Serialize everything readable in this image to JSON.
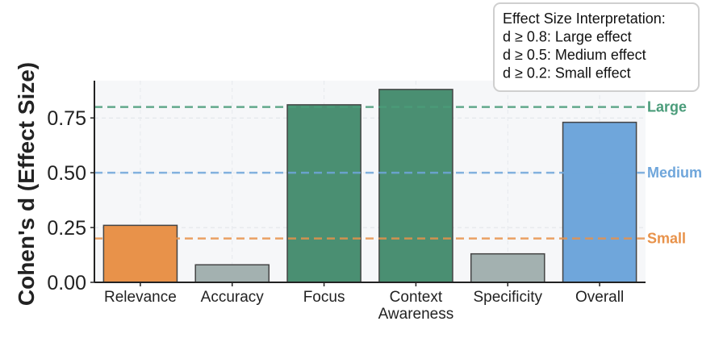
{
  "chart_data": {
    "type": "bar",
    "categories": [
      "Relevance",
      "Accuracy",
      "Focus",
      "Context Awareness",
      "Specificity",
      "Overall"
    ],
    "values": [
      0.26,
      0.08,
      0.81,
      0.88,
      0.13,
      0.73
    ],
    "bar_colors": [
      "#E8924A",
      "#A3B1B0",
      "#4A8F72",
      "#4A8F72",
      "#A3B1B0",
      "#6FA6DB"
    ],
    "ylabel": "Cohen's d (Effect Size)",
    "xlabel": "",
    "ylim": [
      0,
      0.92
    ],
    "yticks": [
      0.0,
      0.25,
      0.5,
      0.75
    ],
    "ytick_labels": [
      "0.00",
      "0.25",
      "0.50",
      "0.75"
    ],
    "reference_lines": [
      {
        "value": 0.8,
        "label": "Large",
        "color": "#4A9C7A"
      },
      {
        "value": 0.5,
        "label": "Medium",
        "color": "#6FA6DB"
      },
      {
        "value": 0.2,
        "label": "Small",
        "color": "#E8924A"
      }
    ],
    "grid": true,
    "legend": {
      "placement": "top-right",
      "lines": [
        "Effect Size Interpretation:",
        "d ≥ 0.8: Large effect",
        "d ≥ 0.5: Medium effect",
        "d ≥ 0.2: Small effect"
      ]
    }
  }
}
